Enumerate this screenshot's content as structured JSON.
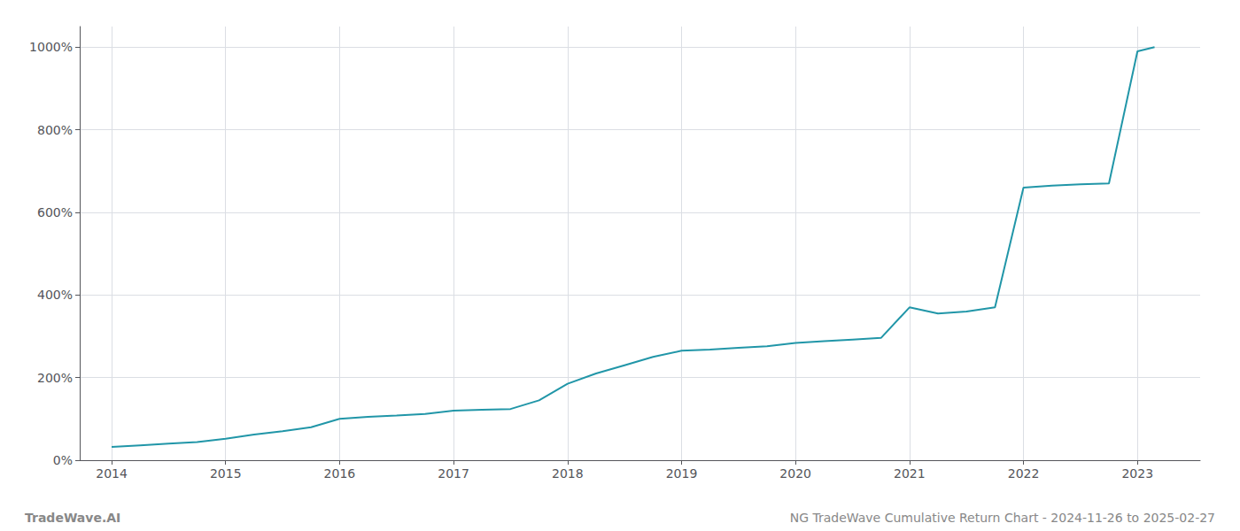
{
  "chart_data": {
    "type": "line",
    "x": [
      2014.0,
      2014.25,
      2014.5,
      2014.75,
      2015.0,
      2015.25,
      2015.5,
      2015.75,
      2016.0,
      2016.25,
      2016.5,
      2016.75,
      2017.0,
      2017.25,
      2017.5,
      2017.75,
      2018.0,
      2018.25,
      2018.5,
      2018.75,
      2019.0,
      2019.25,
      2019.5,
      2019.75,
      2020.0,
      2020.25,
      2020.5,
      2020.75,
      2021.0,
      2021.25,
      2021.5,
      2021.75,
      2022.0,
      2022.25,
      2022.5,
      2022.75,
      2023.0,
      2023.15
    ],
    "values": [
      32,
      36,
      40,
      44,
      52,
      62,
      70,
      80,
      100,
      105,
      108,
      112,
      120,
      122,
      124,
      145,
      185,
      210,
      230,
      250,
      265,
      268,
      272,
      276,
      284,
      288,
      292,
      296,
      370,
      355,
      360,
      370,
      660,
      665,
      668,
      670,
      990,
      1000
    ],
    "color": "#2196a8",
    "xlim": [
      2013.72,
      2023.55
    ],
    "xticks": [
      2014,
      2015,
      2016,
      2017,
      2018,
      2019,
      2020,
      2021,
      2022,
      2023
    ],
    "ylim": [
      0,
      1050
    ],
    "yticks": [
      {
        "value": 0,
        "label": "0%"
      },
      {
        "value": 200,
        "label": "200%"
      },
      {
        "value": 400,
        "label": "400%"
      },
      {
        "value": 600,
        "label": "600%"
      },
      {
        "value": 800,
        "label": "800%"
      },
      {
        "value": 1000,
        "label": "1000%"
      }
    ],
    "grid": true,
    "annotations": [
      "TradeWave.AI",
      "NG TradeWave Cumulative Return Chart - 2024-11-26 to 2025-02-27"
    ]
  }
}
